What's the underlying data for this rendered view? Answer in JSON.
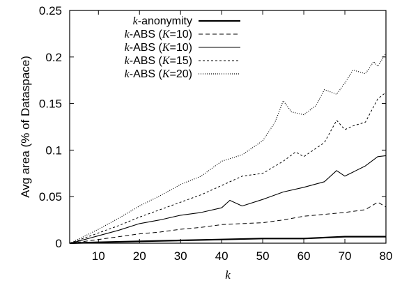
{
  "chart_data": {
    "type": "line",
    "xlabel": "k",
    "ylabel": "Avg area (% of Dataspace)",
    "xlim": [
      3,
      80
    ],
    "ylim": [
      0,
      0.25
    ],
    "x_ticks": [
      10,
      20,
      30,
      40,
      50,
      60,
      70,
      80
    ],
    "y_ticks": [
      0,
      0.05,
      0.1,
      0.15,
      0.2,
      0.25
    ],
    "y_tick_labels": [
      "0",
      "0.05",
      "0.1",
      "0.15",
      "0.2",
      "0.25"
    ],
    "grid": false,
    "legend_position": "top-left",
    "series": [
      {
        "name": "k-anonymity",
        "style": "solid-thick",
        "x": [
          3,
          10,
          20,
          30,
          40,
          50,
          60,
          70,
          80
        ],
        "y": [
          0.0,
          0.001,
          0.002,
          0.003,
          0.004,
          0.005,
          0.005,
          0.007,
          0.007
        ]
      },
      {
        "name": "k-ABS (K=10)",
        "style": "dashed",
        "x": [
          3,
          5,
          10,
          15,
          20,
          25,
          30,
          35,
          40,
          45,
          50,
          55,
          60,
          65,
          70,
          75,
          78,
          80
        ],
        "y": [
          0.0,
          0.001,
          0.004,
          0.007,
          0.01,
          0.012,
          0.015,
          0.017,
          0.02,
          0.021,
          0.022,
          0.025,
          0.029,
          0.031,
          0.033,
          0.036,
          0.044,
          0.039
        ]
      },
      {
        "name": "k-ABS (K=10)",
        "style": "solid-thin",
        "x": [
          3,
          5,
          10,
          15,
          20,
          25,
          30,
          35,
          40,
          42,
          45,
          50,
          55,
          60,
          65,
          68,
          70,
          75,
          78,
          80
        ],
        "y": [
          0.0,
          0.002,
          0.008,
          0.014,
          0.021,
          0.025,
          0.03,
          0.033,
          0.038,
          0.046,
          0.04,
          0.047,
          0.055,
          0.06,
          0.066,
          0.078,
          0.072,
          0.083,
          0.093,
          0.094
        ]
      },
      {
        "name": "k-ABS (K=15)",
        "style": "short-dash",
        "x": [
          3,
          5,
          10,
          15,
          20,
          25,
          30,
          35,
          40,
          45,
          50,
          55,
          58,
          60,
          65,
          68,
          70,
          72,
          75,
          78,
          80
        ],
        "y": [
          0.0,
          0.003,
          0.011,
          0.019,
          0.028,
          0.036,
          0.044,
          0.052,
          0.062,
          0.072,
          0.075,
          0.088,
          0.098,
          0.093,
          0.108,
          0.132,
          0.122,
          0.126,
          0.13,
          0.155,
          0.162
        ]
      },
      {
        "name": "k-ABS (K=20)",
        "style": "dotted",
        "x": [
          3,
          5,
          10,
          15,
          20,
          25,
          30,
          35,
          40,
          45,
          50,
          53,
          55,
          57,
          60,
          63,
          65,
          68,
          70,
          72,
          75,
          77,
          78,
          80
        ],
        "y": [
          0.0,
          0.004,
          0.015,
          0.027,
          0.04,
          0.051,
          0.063,
          0.072,
          0.088,
          0.095,
          0.11,
          0.13,
          0.153,
          0.141,
          0.138,
          0.148,
          0.165,
          0.16,
          0.172,
          0.186,
          0.182,
          0.195,
          0.19,
          0.204
        ]
      }
    ]
  },
  "legend": {
    "entries": [
      {
        "math": "k",
        "text": "-anonymity"
      },
      {
        "math": "k",
        "text": "-ABS (",
        "math2": "K",
        "text2": "=10)"
      },
      {
        "math": "k",
        "text": "-ABS (",
        "math2": "K",
        "text2": "=10)"
      },
      {
        "math": "k",
        "text": "-ABS (",
        "math2": "K",
        "text2": "=15)"
      },
      {
        "math": "k",
        "text": "-ABS (",
        "math2": "K",
        "text2": "=20)"
      }
    ]
  }
}
